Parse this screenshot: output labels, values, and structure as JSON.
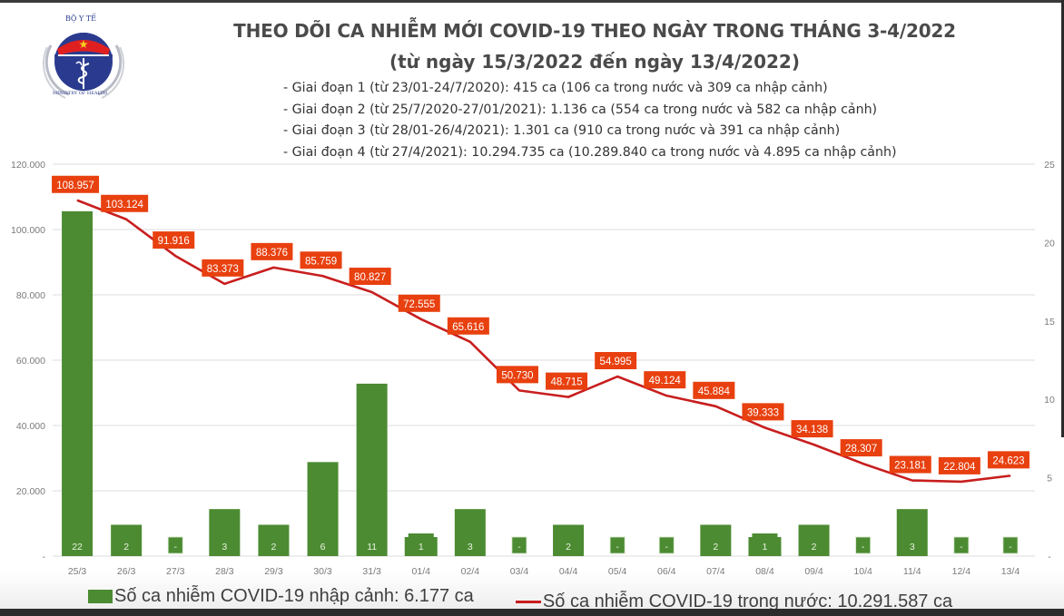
{
  "header": {
    "logo_text_top": "BỘ Y TẾ",
    "logo_text_bottom": "MINISTRY OF HEALTH",
    "title": "THEO DÕI CA NHIỄM MỚI COVID-19 THEO NGÀY TRONG THÁNG 3-4/2022",
    "subtitle": "(từ ngày 15/3/2022 đến ngày 13/4/2022)",
    "phases": [
      "- Giai đoạn 1 (từ 23/01-24/7/2020): 415 ca (106 ca trong nước và 309 ca nhập cảnh)",
      "- Giai đoạn 2 (từ 25/7/2020-27/01/2021): 1.136 ca (554 ca trong nước và 582 ca nhập cảnh)",
      "- Giai đoạn 3 (từ 28/01-26/4/2021): 1.301 ca (910 ca trong nước và 391 ca nhập cảnh)",
      "- Giai đoạn 4 (từ 27/4/2021): 10.294.735 ca (10.289.840 ca trong nước và 4.895 ca nhập cảnh)"
    ]
  },
  "colors": {
    "bar": "#4c8b32",
    "line": "#c81e1e",
    "label_bg": "#e8400f",
    "label_text": "#ffffff",
    "grid": "#e3e3e3",
    "axis_text": "#7a7a7a"
  },
  "chart_data": {
    "type": "bar+line",
    "title": "THEO DÕI CA NHIỄM MỚI COVID-19 THEO NGÀY TRONG THÁNG 3-4/2022",
    "categories": [
      "25/3",
      "26/3",
      "27/3",
      "28/3",
      "29/3",
      "30/3",
      "31/3",
      "01/4",
      "02/4",
      "03/4",
      "04/4",
      "05/4",
      "06/4",
      "07/4",
      "08/4",
      "09/4",
      "10/4",
      "11/4",
      "12/4",
      "13/4"
    ],
    "series": [
      {
        "name": "Số ca nhiễm COVID-19 nhập cảnh: 6.177 ca",
        "type": "bar",
        "axis": "right",
        "values": [
          22,
          2,
          0,
          3,
          2,
          6,
          11,
          1,
          3,
          0,
          2,
          0,
          0,
          2,
          1,
          2,
          0,
          3,
          0,
          0
        ],
        "labels": [
          "22",
          "2",
          "-",
          "3",
          "2",
          "6",
          "11",
          "1",
          "3",
          "-",
          "2",
          "-",
          "-",
          "2",
          "1",
          "2",
          "-",
          "3",
          "-",
          "-"
        ]
      },
      {
        "name": "Số ca nhiễm COVID-19 trong nước: 10.291.587 ca",
        "type": "line",
        "axis": "left",
        "values": [
          108957,
          103124,
          91916,
          83373,
          88376,
          85759,
          80827,
          72555,
          65616,
          50730,
          48715,
          54995,
          49124,
          45884,
          39333,
          34138,
          28307,
          23181,
          22804,
          24623
        ],
        "labels": [
          "108.957",
          "103.124",
          "91.916",
          "83.373",
          "88.376",
          "85.759",
          "80.827",
          "72.555",
          "65.616",
          "50.730",
          "48.715",
          "54.995",
          "49.124",
          "45.884",
          "39.333",
          "34.138",
          "28.307",
          "23.181",
          "22.804",
          "24.623"
        ]
      }
    ],
    "left_axis": {
      "ylim": [
        0,
        120000
      ],
      "ticks": [
        0,
        20000,
        40000,
        60000,
        80000,
        100000,
        120000
      ],
      "tick_labels": [
        "-",
        "20.000",
        "40.000",
        "60.000",
        "80.000",
        "100.000",
        "120.000"
      ]
    },
    "right_axis": {
      "ylim": [
        0,
        25
      ],
      "ticks": [
        0,
        5,
        10,
        15,
        20,
        25
      ],
      "tick_labels": [
        "-",
        "5",
        "10",
        "15",
        "20",
        "25"
      ]
    },
    "grid": true,
    "legend_position": "bottom"
  },
  "legend": {
    "bar_label": "Số ca nhiễm COVID-19 nhập cảnh: 6.177 ca",
    "line_label": "Số ca nhiễm COVID-19 trong nước: 10.291.587 ca"
  }
}
